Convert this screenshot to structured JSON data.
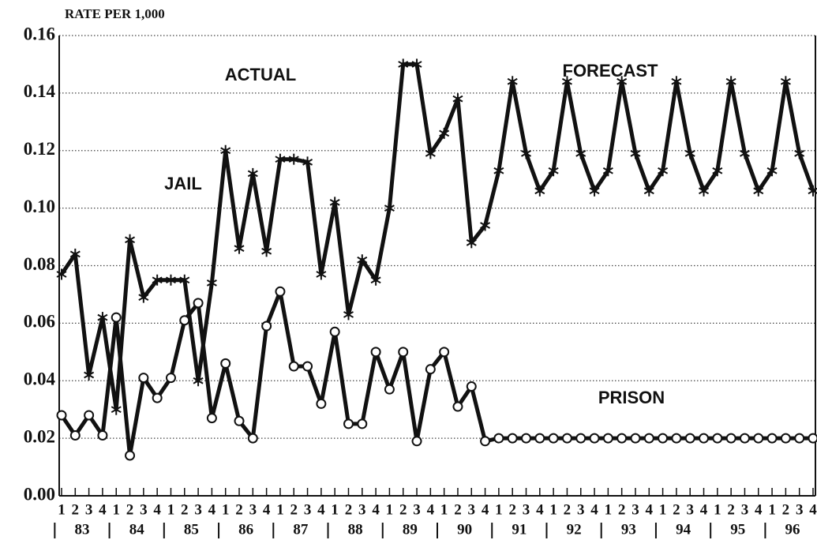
{
  "chart_data": {
    "type": "line",
    "title": "RATE PER 1,000",
    "categories": [
      "1",
      "2",
      "3",
      "4",
      "1",
      "2",
      "3",
      "4",
      "1",
      "2",
      "3",
      "4",
      "1",
      "2",
      "3",
      "4",
      "1",
      "2",
      "3",
      "4",
      "1",
      "2",
      "3",
      "4",
      "1",
      "2",
      "3",
      "4",
      "1",
      "2",
      "3",
      "4",
      "1",
      "2",
      "3",
      "4",
      "1",
      "2",
      "3",
      "4",
      "1",
      "2",
      "3",
      "4",
      "1",
      "2",
      "3",
      "4",
      "1",
      "2",
      "3",
      "4",
      "1",
      "2",
      "3",
      "4"
    ],
    "year_labels": [
      "83",
      "84",
      "85",
      "86",
      "87",
      "88",
      "89",
      "90",
      "91",
      "92",
      "93",
      "94",
      "95",
      "96"
    ],
    "series": [
      {
        "name": "JAIL",
        "color": "#111111",
        "marker": "asterisk",
        "values": [
          0.077,
          0.084,
          0.042,
          0.062,
          0.03,
          0.089,
          0.069,
          0.075,
          0.075,
          0.075,
          0.04,
          0.074,
          0.12,
          0.086,
          0.112,
          0.085,
          0.117,
          0.117,
          0.116,
          0.077,
          0.102,
          0.063,
          0.082,
          0.075,
          0.1,
          0.15,
          0.15,
          0.119,
          0.126,
          0.138,
          0.088,
          0.094,
          0.113,
          0.144,
          0.119,
          0.106,
          0.113,
          0.144,
          0.119,
          0.106,
          0.113,
          0.144,
          0.119,
          0.106,
          0.113,
          0.144,
          0.119,
          0.106,
          0.113,
          0.144,
          0.119,
          0.106,
          0.113,
          0.144,
          0.119,
          0.106
        ]
      },
      {
        "name": "PRISON",
        "color": "#111111",
        "marker": "circle",
        "values": [
          0.028,
          0.021,
          0.028,
          0.021,
          0.062,
          0.014,
          0.041,
          0.034,
          0.041,
          0.061,
          0.067,
          0.027,
          0.046,
          0.026,
          0.02,
          0.059,
          0.071,
          0.045,
          0.045,
          0.032,
          0.057,
          0.025,
          0.025,
          0.05,
          0.037,
          0.05,
          0.019,
          0.044,
          0.05,
          0.031,
          0.038,
          0.019,
          0.02,
          0.02,
          0.02,
          0.02,
          0.02,
          0.02,
          0.02,
          0.02,
          0.02,
          0.02,
          0.02,
          0.02,
          0.02,
          0.02,
          0.02,
          0.02,
          0.02,
          0.02,
          0.02,
          0.02,
          0.02,
          0.02,
          0.02,
          0.02
        ]
      }
    ],
    "annotations": [
      "ACTUAL",
      "FORECAST",
      "JAIL",
      "PRISON"
    ],
    "ylim": [
      0,
      0.16
    ],
    "yticks": [
      {
        "value": 0,
        "label": "0.00"
      },
      {
        "value": 0.02,
        "label": "0.02"
      },
      {
        "value": 0.04,
        "label": "0.04"
      },
      {
        "value": 0.06,
        "label": "0.06"
      },
      {
        "value": 0.08,
        "label": "0.08"
      },
      {
        "value": 0.1,
        "label": "0.10"
      },
      {
        "value": 0.12,
        "label": "0.12"
      },
      {
        "value": 0.14,
        "label": "0.14"
      },
      {
        "value": 0.16,
        "label": "0.16"
      }
    ],
    "grid": true
  }
}
